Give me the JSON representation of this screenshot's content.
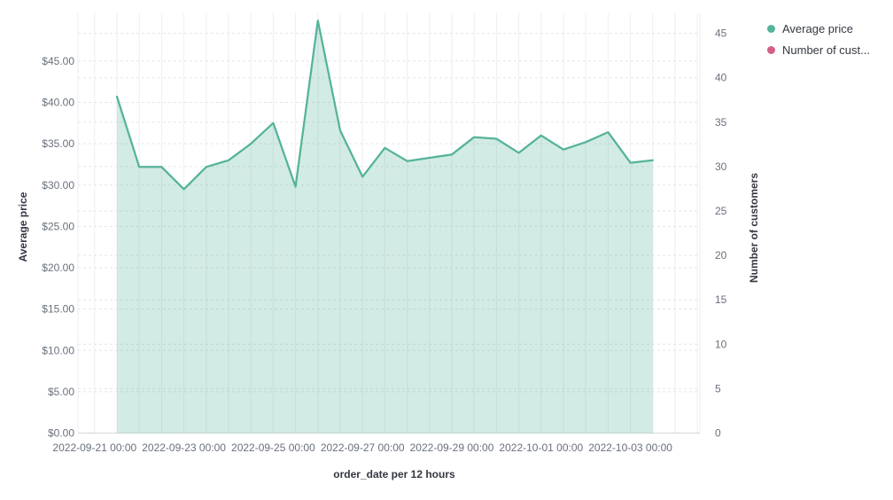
{
  "chart_data": {
    "type": "area",
    "title": "",
    "x_axis": {
      "label": "order_date per 12 hours",
      "tick_labels": [
        "2022-09-21 00:00",
        "2022-09-23 00:00",
        "2022-09-25 00:00",
        "2022-09-27 00:00",
        "2022-09-29 00:00",
        "2022-10-01 00:00",
        "2022-10-03 00:00"
      ],
      "tick_interval_hours": 48
    },
    "y_axis_left": {
      "label": "Average price",
      "tick_labels": [
        "$0.00",
        "$5.00",
        "$10.00",
        "$15.00",
        "$20.00",
        "$25.00",
        "$30.00",
        "$35.00",
        "$40.00",
        "$45.00"
      ],
      "tick_values": [
        0,
        5,
        10,
        15,
        20,
        25,
        30,
        35,
        40,
        45
      ],
      "range": [
        0,
        50.7
      ]
    },
    "y_axis_right": {
      "label": "Number of customers",
      "tick_labels": [
        "0",
        "5",
        "10",
        "15",
        "20",
        "25",
        "30",
        "35",
        "40",
        "45"
      ],
      "tick_values": [
        0,
        5,
        10,
        15,
        20,
        25,
        30,
        35,
        40,
        45
      ],
      "range": [
        0,
        47.2
      ]
    },
    "series": [
      {
        "name": "Average price",
        "axis": "left",
        "render": "area",
        "color": "#54B399",
        "fill_opacity": 0.26,
        "start": "2022-09-21 12:00",
        "interval_hours": 12,
        "values": [
          40.7,
          32.2,
          32.2,
          29.5,
          32.2,
          33.0,
          35.0,
          37.5,
          29.8,
          49.9,
          36.6,
          31.0,
          34.5,
          32.9,
          33.3,
          33.7,
          35.8,
          35.6,
          33.9,
          36.0,
          34.3,
          35.2,
          36.4,
          32.7,
          33.0
        ]
      },
      {
        "name": "Number of cust...",
        "axis": "right",
        "render": "line",
        "color": "#D36086",
        "no_visible_data": true
      }
    ],
    "legend": [
      {
        "label": "Average price",
        "color": "#54B399"
      },
      {
        "label": "Number of cust...",
        "color": "#D36086"
      }
    ],
    "grid": {
      "vertical_solid": true,
      "horizontal_dashed": true,
      "legend_position": "top-right"
    }
  },
  "colors": {
    "series_green": "#54B399",
    "series_pink": "#D36086",
    "tick_text": "#69707D",
    "title_text": "#343741",
    "grid_vertical": "#ECEEF2",
    "grid_dashed": "#E2E5EB",
    "axis_line": "#D3D6DB"
  }
}
